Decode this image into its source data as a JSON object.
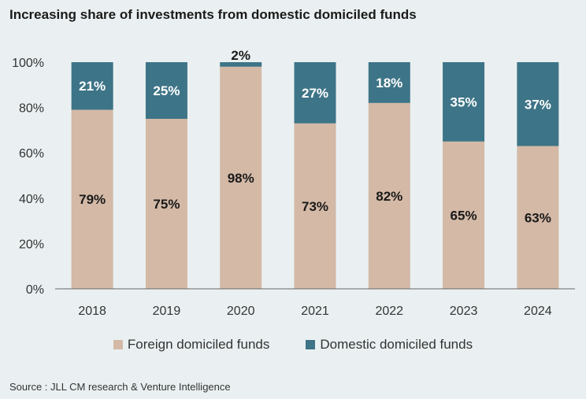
{
  "title": "Increasing share of investments from domestic domiciled funds",
  "source": "Source : JLL CM research & Venture Intelligence",
  "colors": {
    "background": "#eaf0f1",
    "foreign": "#d3b9a6",
    "domestic": "#3e7487",
    "axis": "#666666"
  },
  "chart_data": {
    "type": "bar",
    "stacked": true,
    "categories": [
      "2018",
      "2019",
      "2020",
      "2021",
      "2022",
      "2023",
      "2024"
    ],
    "series": [
      {
        "name": "Foreign domiciled funds",
        "values": [
          79,
          75,
          98,
          73,
          82,
          65,
          63
        ]
      },
      {
        "name": "Domestic domiciled funds",
        "values": [
          21,
          25,
          2,
          27,
          18,
          35,
          37
        ]
      }
    ],
    "data_labels": {
      "Foreign domiciled funds": [
        "79%",
        "75%",
        "98%",
        "73%",
        "82%",
        "65%",
        "63%"
      ],
      "Domestic domiciled funds": [
        "21%",
        "25%",
        "2%",
        "27%",
        "18%",
        "35%",
        "37%"
      ]
    },
    "yticks": [
      "0%",
      "20%",
      "40%",
      "60%",
      "80%",
      "100%"
    ],
    "ylim": [
      0,
      100
    ],
    "grid": false,
    "legend_position": "bottom"
  }
}
